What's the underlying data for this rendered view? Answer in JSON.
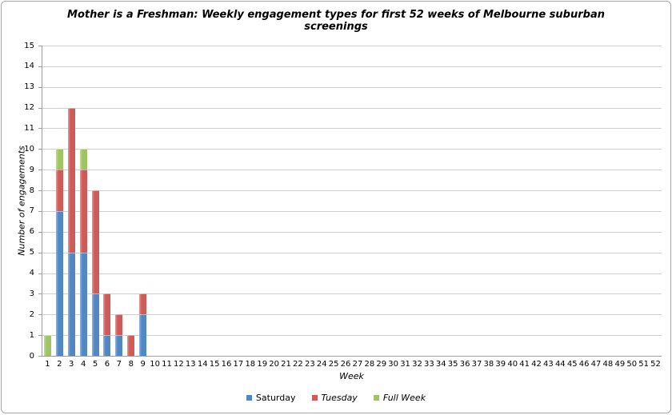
{
  "chart_data": {
    "type": "bar",
    "stacked": true,
    "title": "Mother is a Freshman: Weekly engagement types for first 52 weeks of Melbourne suburban screenings",
    "xlabel": "Week",
    "ylabel": "Number of engagements",
    "ylim": [
      0,
      15
    ],
    "ytick_step": 1,
    "grid": true,
    "legend_position": "bottom-center",
    "categories": [
      1,
      2,
      3,
      4,
      5,
      6,
      7,
      8,
      9,
      10,
      11,
      12,
      13,
      14,
      15,
      16,
      17,
      18,
      19,
      20,
      21,
      22,
      23,
      24,
      25,
      26,
      27,
      28,
      29,
      30,
      31,
      32,
      33,
      34,
      35,
      36,
      37,
      38,
      39,
      40,
      41,
      42,
      43,
      44,
      45,
      46,
      47,
      48,
      49,
      50,
      51,
      52
    ],
    "series": [
      {
        "name": "Saturday",
        "color": "#5187C3",
        "label_style": "normal",
        "values": [
          0,
          7,
          5,
          5,
          3,
          1,
          1,
          0,
          2,
          0,
          0,
          0,
          0,
          0,
          0,
          0,
          0,
          0,
          0,
          0,
          0,
          0,
          0,
          0,
          0,
          0,
          0,
          0,
          0,
          0,
          0,
          0,
          0,
          0,
          0,
          0,
          0,
          0,
          0,
          0,
          0,
          0,
          0,
          0,
          0,
          0,
          0,
          0,
          0,
          0,
          0,
          0
        ]
      },
      {
        "name": "Tuesday",
        "color": "#CE5B57",
        "label_style": "italic",
        "values": [
          0,
          2,
          7,
          4,
          5,
          2,
          1,
          1,
          1,
          0,
          0,
          0,
          0,
          0,
          0,
          0,
          0,
          0,
          0,
          0,
          0,
          0,
          0,
          0,
          0,
          0,
          0,
          0,
          0,
          0,
          0,
          0,
          0,
          0,
          0,
          0,
          0,
          0,
          0,
          0,
          0,
          0,
          0,
          0,
          0,
          0,
          0,
          0,
          0,
          0,
          0,
          0
        ]
      },
      {
        "name": "Full Week",
        "color": "#A0C462",
        "label_style": "italic",
        "values": [
          1,
          1,
          0,
          1,
          0,
          0,
          0,
          0,
          0,
          0,
          0,
          0,
          0,
          0,
          0,
          0,
          0,
          0,
          0,
          0,
          0,
          0,
          0,
          0,
          0,
          0,
          0,
          0,
          0,
          0,
          0,
          0,
          0,
          0,
          0,
          0,
          0,
          0,
          0,
          0,
          0,
          0,
          0,
          0,
          0,
          0,
          0,
          0,
          0,
          0,
          0,
          0
        ]
      }
    ],
    "colors": {
      "gridline": "#cfcfcf",
      "axis": "#9e9e9e",
      "text": "#000000"
    }
  }
}
